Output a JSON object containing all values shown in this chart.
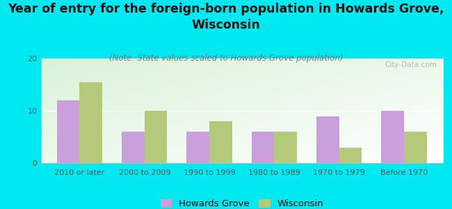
{
  "title": "Year of entry for the foreign-born population in Howards Grove,\nWisconsin",
  "subtitle": "(Note: State values scaled to Howards Grove population)",
  "categories": [
    "2010 or later",
    "2000 to 2009",
    "1990 to 1999",
    "1980 to 1989",
    "1970 to 1979",
    "Before 1970"
  ],
  "howards_grove": [
    12,
    6,
    6,
    6,
    9,
    10
  ],
  "wisconsin": [
    15.5,
    10,
    8,
    6,
    3,
    6
  ],
  "hg_color": "#c9a0dc",
  "wi_color": "#b5c97a",
  "background_outer": "#00e8f0",
  "ylim": [
    0,
    20
  ],
  "yticks": [
    0,
    10,
    20
  ],
  "bar_width": 0.35,
  "title_fontsize": 12.5,
  "subtitle_fontsize": 8.5,
  "legend_fontsize": 9.5,
  "tick_fontsize": 8,
  "watermark": "City-Data.com"
}
